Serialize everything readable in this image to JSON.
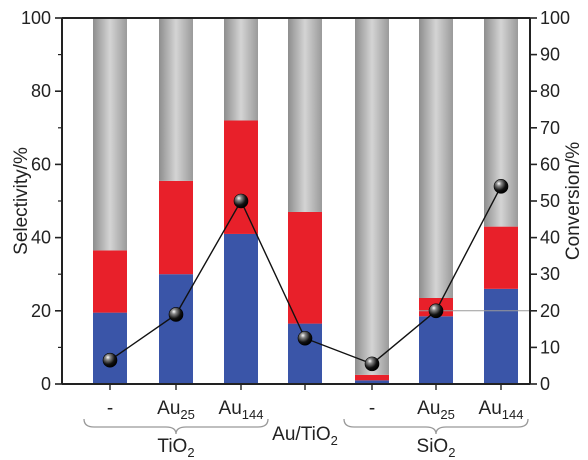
{
  "chart_data": {
    "type": "bar",
    "subtype": "stacked-bar-with-line-overlay",
    "categories": [
      {
        "main": "-",
        "sub": ""
      },
      {
        "main": "Au",
        "sub": "25"
      },
      {
        "main": "Au",
        "sub": "144"
      },
      {
        "main": "",
        "sub": ""
      },
      {
        "main": "-",
        "sub": ""
      },
      {
        "main": "Au",
        "sub": "25"
      },
      {
        "main": "Au",
        "sub": "144"
      }
    ],
    "groups": [
      {
        "main": "TiO",
        "sub": "2"
      },
      {
        "main": "Au/TiO",
        "sub": "2"
      },
      {
        "main": "SiO",
        "sub": "2"
      }
    ],
    "series": [
      {
        "values": [
          19.5,
          30,
          41,
          16.5,
          1,
          18.5,
          26
        ],
        "color": "#3a55a8",
        "axis": "left"
      },
      {
        "values": [
          17,
          25.5,
          31,
          30.5,
          1.5,
          5,
          17
        ],
        "color": "#e8202a",
        "axis": "left"
      },
      {
        "values": [
          63.5,
          44.5,
          28,
          53,
          97.5,
          76.5,
          57
        ],
        "color": "#a8a8a8",
        "axis": "left"
      },
      {
        "values": [
          6.5,
          19,
          50,
          12.5,
          5.5,
          20,
          54
        ],
        "type": "line",
        "axis": "right",
        "color": "#000000"
      }
    ],
    "ylabel": "Selectivity/%",
    "y2label": "Conversion/%",
    "ylim": [
      0,
      100
    ],
    "y2lim": [
      0,
      100
    ],
    "yticks": [
      "0",
      "20",
      "40",
      "60",
      "80",
      "100"
    ],
    "y2ticks": [
      "0",
      "10",
      "20",
      "30",
      "40",
      "50",
      "60",
      "70",
      "80",
      "90",
      "100"
    ],
    "grid": false,
    "reference_line": {
      "y2": 20
    }
  }
}
